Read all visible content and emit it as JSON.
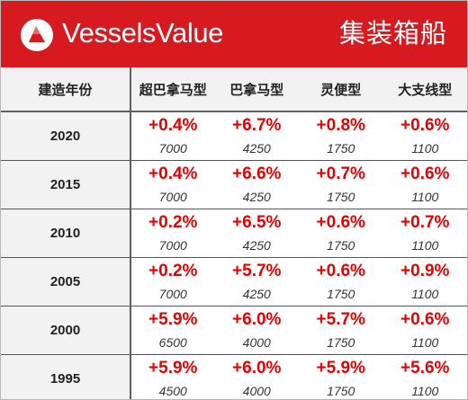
{
  "header": {
    "brand": "VesselsValue",
    "category": "集装箱船",
    "logo_icon": "vesselsvalue-logo-icon",
    "background_color": "#d71920"
  },
  "table": {
    "columns": [
      "建造年份",
      "超巴拿马型",
      "巴拿马型",
      "灵便型",
      "大支线型"
    ],
    "rows": [
      {
        "year": "2020",
        "cells": [
          {
            "pct": "+0.4%",
            "value": "7000"
          },
          {
            "pct": "+6.7%",
            "value": "4250"
          },
          {
            "pct": "+0.8%",
            "value": "1750"
          },
          {
            "pct": "+0.6%",
            "value": "1100"
          }
        ]
      },
      {
        "year": "2015",
        "cells": [
          {
            "pct": "+0.4%",
            "value": "7000"
          },
          {
            "pct": "+6.6%",
            "value": "4250"
          },
          {
            "pct": "+0.7%",
            "value": "1750"
          },
          {
            "pct": "+0.6%",
            "value": "1100"
          }
        ]
      },
      {
        "year": "2010",
        "cells": [
          {
            "pct": "+0.2%",
            "value": "7000"
          },
          {
            "pct": "+6.5%",
            "value": "4250"
          },
          {
            "pct": "+0.6%",
            "value": "1750"
          },
          {
            "pct": "+0.7%",
            "value": "1100"
          }
        ]
      },
      {
        "year": "2005",
        "cells": [
          {
            "pct": "+0.2%",
            "value": "7000"
          },
          {
            "pct": "+5.7%",
            "value": "4250"
          },
          {
            "pct": "+0.6%",
            "value": "1750"
          },
          {
            "pct": "+0.9%",
            "value": "1100"
          }
        ]
      },
      {
        "year": "2000",
        "cells": [
          {
            "pct": "+5.9%",
            "value": "6500"
          },
          {
            "pct": "+6.0%",
            "value": "4000"
          },
          {
            "pct": "+5.7%",
            "value": "1750"
          },
          {
            "pct": "+0.6%",
            "value": "1100"
          }
        ]
      },
      {
        "year": "1995",
        "cells": [
          {
            "pct": "+5.9%",
            "value": "4500"
          },
          {
            "pct": "+6.0%",
            "value": "4000"
          },
          {
            "pct": "+5.9%",
            "value": "1750"
          },
          {
            "pct": "+5.6%",
            "value": "1100"
          }
        ]
      }
    ],
    "pct_color": "#e60000"
  }
}
